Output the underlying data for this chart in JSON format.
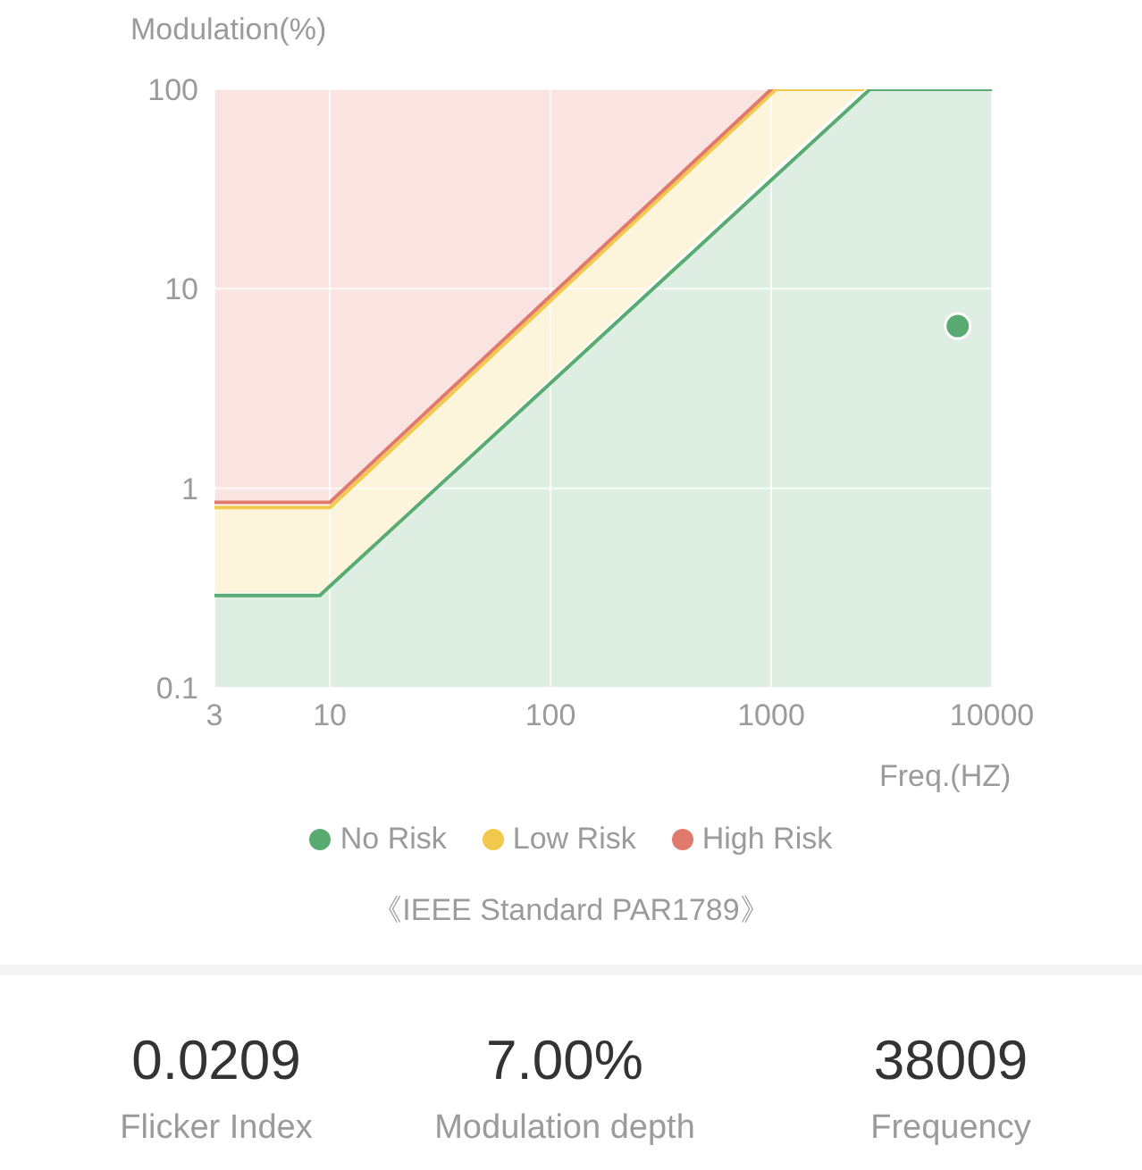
{
  "chart_data": [
    {
      "type": "line",
      "xlabel": "Freq.(HZ)",
      "ylabel": "Modulation(%)",
      "annotations": [
        "《IEEE Standard PAR1789》"
      ],
      "log": "xy",
      "xlim": [
        3,
        10000
      ],
      "xticks": [
        3,
        10,
        100,
        1000,
        10000
      ],
      "ylim": [
        0.1,
        100
      ],
      "yticks": [
        0.1,
        1,
        10,
        100
      ],
      "grid": true,
      "legend": "bottom",
      "series": [
        {
          "name": "No Risk",
          "color": "#5aab72",
          "x": [
            3,
            9,
            2800,
            10000
          ],
          "values": [
            0.29,
            0.29,
            100,
            100
          ],
          "lower": [
            0.1,
            0.1,
            0.1,
            0.1
          ],
          "upper": [
            0.29,
            0.29,
            100,
            100
          ]
        },
        {
          "name": "Low Risk",
          "color": "#f2c94c",
          "x": [
            3,
            9,
            10,
            1050,
            2600
          ],
          "values": [
            0.8,
            0.8,
            0.8,
            100,
            100
          ],
          "lower": [
            0.3,
            0.3,
            0.33,
            40,
            100
          ],
          "upper": [
            0.8,
            0.8,
            0.8,
            100,
            100
          ]
        },
        {
          "name": "High Risk",
          "color": "#e07a6c",
          "x": [
            3,
            10,
            1000
          ],
          "values": [
            0.85,
            0.85,
            100
          ],
          "lower": [
            0.85,
            0.85,
            100
          ],
          "upper": [
            100,
            100,
            100
          ]
        },
        {
          "type": "scatter",
          "color": "#5aab72",
          "marker": "circle",
          "x": [
            7000
          ],
          "values": [
            6.5
          ]
        }
      ]
    },
    {
      "type": "other",
      "annotations": [
        "0.0209",
        "Flicker Index",
        "7.00%",
        "Modulation depth",
        "38009",
        "Frequency"
      ]
    }
  ]
}
